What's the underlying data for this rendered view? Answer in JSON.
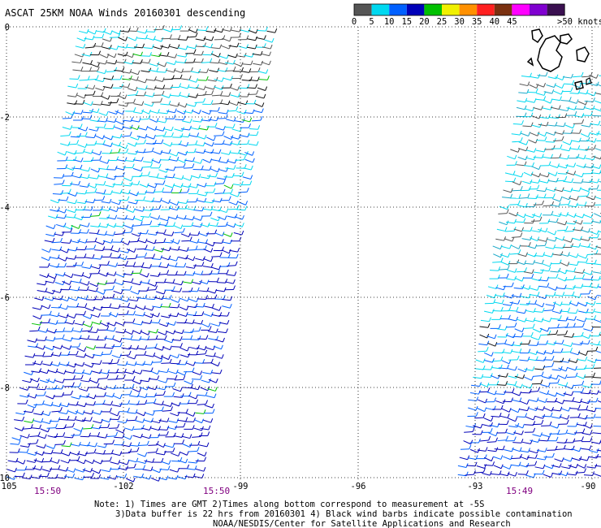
{
  "header": {
    "title": "ASCAT 25KM NOAA Winds 20160301 descending"
  },
  "legend": {
    "unit_label": ">50 knots",
    "bins": [
      {
        "label": "0",
        "color": "#555555"
      },
      {
        "label": "5",
        "color": "#00d8f0"
      },
      {
        "label": "10",
        "color": "#0060ff"
      },
      {
        "label": "15",
        "color": "#0000b8"
      },
      {
        "label": "20",
        "color": "#00c000"
      },
      {
        "label": "25",
        "color": "#f0f000"
      },
      {
        "label": "30",
        "color": "#ff9000"
      },
      {
        "label": "35",
        "color": "#ff2020"
      },
      {
        "label": "40",
        "color": "#7a3010"
      },
      {
        "label": "45",
        "color": "#ff00ff"
      },
      {
        "label": "",
        "color": "#8000d0"
      },
      {
        "label": "",
        "color": "#3a1050"
      }
    ]
  },
  "axes": {
    "lat_labels": [
      "0",
      "-2",
      "-4",
      "-6",
      "-8",
      "-10"
    ],
    "lon_labels": [
      "-105",
      "-102",
      "-99",
      "-96",
      "-93",
      "-90"
    ]
  },
  "time_labels": [
    "15:50",
    "15:50",
    "15:49"
  ],
  "notes": {
    "line1": "Note: 1) Times are GMT 2)Times along bottom correspond to measurement at -5S",
    "line2": "3)Data buffer is 22 hrs from 20160301 4) Black wind barbs indicate possible contamination",
    "line3": "NOAA/NESDIS/Center for Satellite Applications and Research"
  },
  "colors": {
    "time_label": "#800080",
    "contaminated": "#000000",
    "grid": "#000000"
  }
}
